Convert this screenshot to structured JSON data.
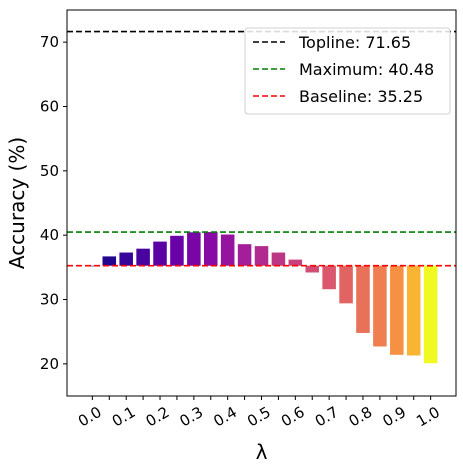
{
  "chart_data": {
    "type": "bar",
    "xlabel": "λ",
    "ylabel": "Accuracy (%)",
    "x": [
      0.0,
      0.05,
      0.1,
      0.15,
      0.2,
      0.25,
      0.3,
      0.35,
      0.4,
      0.45,
      0.5,
      0.55,
      0.6,
      0.65,
      0.7,
      0.75,
      0.8,
      0.85,
      0.9,
      0.95,
      1.0
    ],
    "values": [
      35.25,
      36.7,
      37.3,
      37.9,
      39.0,
      39.9,
      40.45,
      40.48,
      40.1,
      38.6,
      38.3,
      37.3,
      36.2,
      34.2,
      31.6,
      29.4,
      24.8,
      22.7,
      21.4,
      21.3,
      20.1
    ],
    "xticks": [
      "0.0",
      "0.1",
      "0.2",
      "0.3",
      "0.4",
      "0.5",
      "0.6",
      "0.7",
      "0.8",
      "0.9",
      "1.0"
    ],
    "xtick_values": [
      0.0,
      0.1,
      0.2,
      0.3,
      0.4,
      0.5,
      0.6,
      0.7,
      0.8,
      0.9,
      1.0
    ],
    "yticks": [
      20,
      30,
      40,
      50,
      60,
      70
    ],
    "ylim": [
      15,
      75
    ],
    "xlim": [
      -0.075,
      1.075
    ],
    "colormap": "plasma",
    "reference_lines": [
      {
        "label": "Topline: 71.65",
        "value": 71.65,
        "color": "#000000"
      },
      {
        "label": "Maximum: 40.48",
        "value": 40.48,
        "color": "#008000"
      },
      {
        "label": "Baseline: 35.25",
        "value": 35.25,
        "color": "#ff0000"
      }
    ],
    "legend_position": "top-right",
    "grid": false
  }
}
